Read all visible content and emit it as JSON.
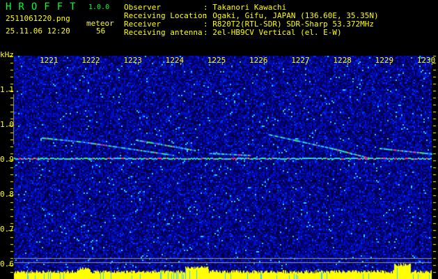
{
  "app": {
    "title": "HROFFT",
    "version": "1.0.0"
  },
  "file": {
    "name": "2511061220.png",
    "timestamp": "25.11.06 12:20"
  },
  "detection": {
    "label": "meteor",
    "count": "56"
  },
  "info": [
    {
      "key": "Observer",
      "value": ": Takanori Kawachi"
    },
    {
      "key": "Receiving Location",
      "value": ": Ogaki, Gifu, JAPAN (136.60E, 35.35N)"
    },
    {
      "key": "Receiver",
      "value": ": R820T2(RTL-SDR) SDR-Sharp 53.372MHz"
    },
    {
      "key": "Receiving antenna",
      "value": ": 2el-HB9CV Vertical (el. E-W)"
    }
  ],
  "spectrogram": {
    "y_unit": "kHz",
    "y_ticks": [
      "1.1",
      "1.0",
      "0.9",
      "0.8",
      "0.7",
      "0.6"
    ],
    "x_ticks": [
      "1221",
      "1222",
      "1223",
      "1224",
      "1225",
      "1226",
      "1227",
      "1228",
      "1229",
      "1230"
    ],
    "colors": {
      "background": "#000066",
      "text": "#ffff00",
      "title": "#00ff33",
      "level_bar": "#ffff00"
    }
  }
}
